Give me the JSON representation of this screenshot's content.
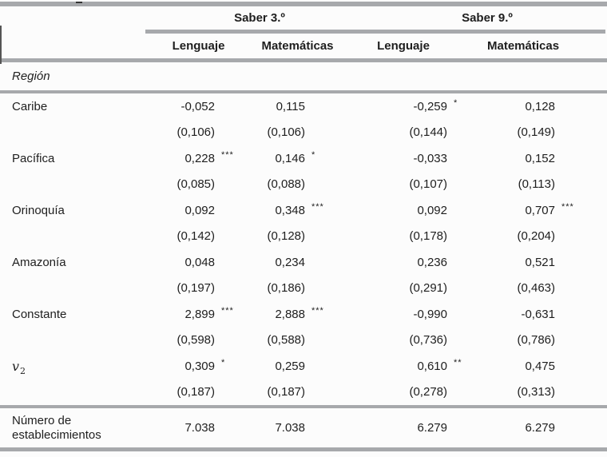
{
  "header": {
    "groups": [
      "Saber 3.º",
      "Saber 9.º"
    ],
    "columns": [
      "Lenguaje",
      "Matemáticas",
      "Lenguaje",
      "Matemáticas"
    ]
  },
  "section": {
    "label": "Región"
  },
  "rows": [
    {
      "label": "Caribe",
      "cells": [
        {
          "est": "-0,052",
          "stars": "",
          "se": "(0,106)"
        },
        {
          "est": "0,115",
          "stars": "",
          "se": "(0,106)"
        },
        {
          "est": "-0,259",
          "stars": "*",
          "se": "(0,144)"
        },
        {
          "est": "0,128",
          "stars": "",
          "se": "(0,149)"
        }
      ]
    },
    {
      "label": "Pacífica",
      "cells": [
        {
          "est": "0,228",
          "stars": "***",
          "se": "(0,085)"
        },
        {
          "est": "0,146",
          "stars": "*",
          "se": "(0,088)"
        },
        {
          "est": "-0,033",
          "stars": "",
          "se": "(0,107)"
        },
        {
          "est": "0,152",
          "stars": "",
          "se": "(0,113)"
        }
      ]
    },
    {
      "label": "Orinoquía",
      "cells": [
        {
          "est": "0,092",
          "stars": "",
          "se": "(0,142)"
        },
        {
          "est": "0,348",
          "stars": "***",
          "se": "(0,128)"
        },
        {
          "est": "0,092",
          "stars": "",
          "se": "(0,178)"
        },
        {
          "est": "0,707",
          "stars": "***",
          "se": "(0,204)"
        }
      ]
    },
    {
      "label": "Amazonía",
      "cells": [
        {
          "est": "0,048",
          "stars": "",
          "se": "(0,197)"
        },
        {
          "est": "0,234",
          "stars": "",
          "se": "(0,186)"
        },
        {
          "est": "0,236",
          "stars": "",
          "se": "(0,291)"
        },
        {
          "est": "0,521",
          "stars": "",
          "se": "(0,463)"
        }
      ]
    },
    {
      "label": "Constante",
      "cells": [
        {
          "est": "2,899",
          "stars": "***",
          "se": "(0,598)"
        },
        {
          "est": "2,888",
          "stars": "***",
          "se": "(0,588)"
        },
        {
          "est": "-0,990",
          "stars": "",
          "se": "(0,736)"
        },
        {
          "est": "-0,631",
          "stars": "",
          "se": "(0,786)"
        }
      ]
    },
    {
      "label": "v",
      "label_sub": "2",
      "math": true,
      "cells": [
        {
          "est": "0,309",
          "stars": "*",
          "se": "(0,187)"
        },
        {
          "est": "0,259",
          "stars": "",
          "se": "(0,187)"
        },
        {
          "est": "0,610",
          "stars": "**",
          "se": "(0,278)"
        },
        {
          "est": "0,475",
          "stars": "",
          "se": "(0,313)"
        }
      ]
    }
  ],
  "footer": {
    "label": "Número de establecimientos",
    "values": [
      "7.038",
      "7.038",
      "6.279",
      "6.279"
    ]
  },
  "colors": {
    "rule": "#a7a9ac",
    "text": "#1e1e1e"
  }
}
